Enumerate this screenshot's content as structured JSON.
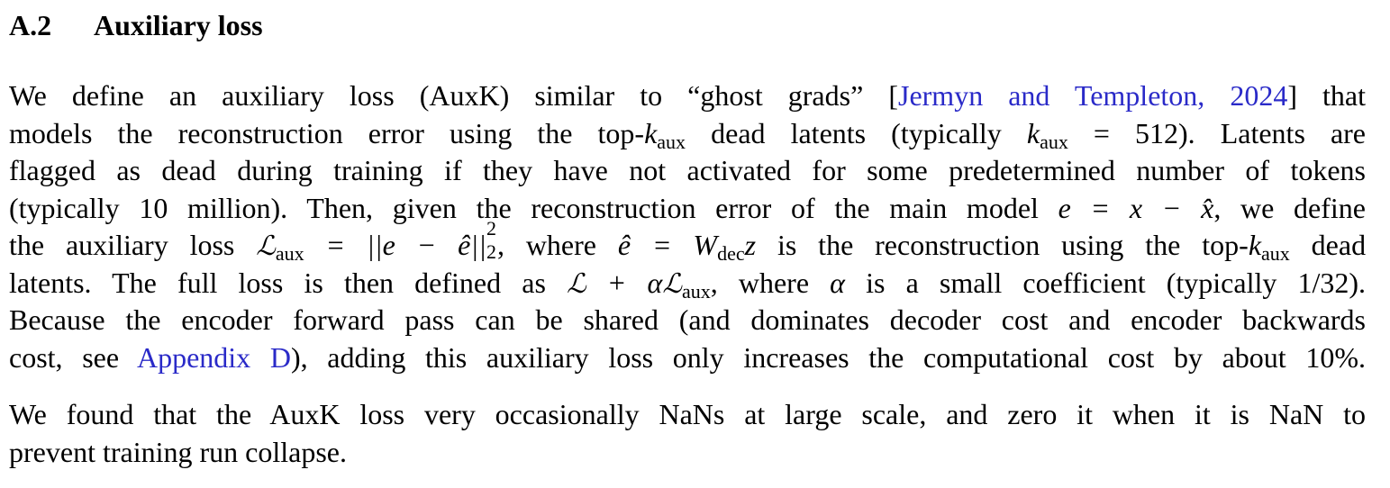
{
  "section": {
    "number": "A.2",
    "title": "Auxiliary loss"
  },
  "paragraph1": {
    "l1_a": "We define an auxiliary loss (AuxK) similar to “ghost grads” [",
    "l1_cite": "Jermyn and Templeton, 2024",
    "l1_b": "] that",
    "l2_a": "models the reconstruction error using the top-",
    "k": "k",
    "aux": "aux",
    "l2_b": " dead latents (typically ",
    "l2_c": " = 512). Latents are",
    "l3": "flagged as dead during training if they have not activated for some predetermined number of tokens",
    "l4_a": "(typically 10 million). Then, given the reconstruction error of the main model ",
    "l4_eq": "e = x − x̂",
    "l4_b": ", we define",
    "l5_a": "the auxiliary loss ",
    "L": "ℒ",
    "l5_eq1": " = ||e − ê||",
    "sup2": "2",
    "sub2": "2",
    "l5_b": ", where ",
    "l5_eq2": "ê = W",
    "dec": "dec",
    "z": "z",
    "l5_c": " is the reconstruction using the top-",
    "l5_d": " dead",
    "l6_a": "latents. The full loss is then defined as ",
    "l6_eq": " + α",
    "l6_b": ", where ",
    "alpha": "α",
    "l6_c": " is a small coefficient (typically 1/32).",
    "l7": "Because the encoder forward pass can be shared (and dominates decoder cost and encoder backwards",
    "l8_a": "cost, see ",
    "l8_cite": "Appendix D",
    "l8_b": "), adding this auxiliary loss only increases the computational cost by about 10%."
  },
  "paragraph2": {
    "l1": "We found that the AuxK loss very occasionally NaNs at large scale, and zero it when it is NaN to",
    "l2": "prevent training run collapse."
  },
  "colors": {
    "text": "#000000",
    "link": "#2a2ac8"
  }
}
